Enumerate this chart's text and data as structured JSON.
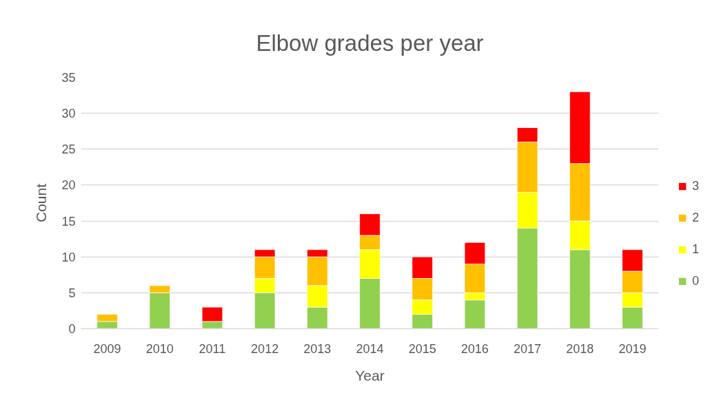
{
  "chart_data": {
    "type": "bar",
    "title": "Elbow grades per year",
    "xlabel": "Year",
    "ylabel": "Count",
    "categories": [
      "2009",
      "2010",
      "2011",
      "2012",
      "2013",
      "2014",
      "2015",
      "2016",
      "2017",
      "2018",
      "2019"
    ],
    "series": [
      {
        "name": "0",
        "color": "#92d050",
        "values": [
          1,
          5,
          1,
          5,
          3,
          7,
          2,
          4,
          14,
          11,
          3
        ]
      },
      {
        "name": "1",
        "color": "#ffff00",
        "values": [
          0,
          0,
          0,
          2,
          3,
          4,
          2,
          1,
          5,
          4,
          2
        ]
      },
      {
        "name": "2",
        "color": "#ffc000",
        "values": [
          1,
          1,
          0,
          3,
          4,
          2,
          3,
          4,
          7,
          8,
          3
        ]
      },
      {
        "name": "3",
        "color": "#ff0000",
        "values": [
          0,
          0,
          2,
          1,
          1,
          3,
          3,
          3,
          2,
          10,
          3
        ]
      }
    ],
    "stacked": true,
    "ylim": [
      0,
      35
    ],
    "yticks": [
      0,
      5,
      10,
      15,
      20,
      25,
      30,
      35
    ],
    "grid": "y",
    "legend": "right"
  }
}
